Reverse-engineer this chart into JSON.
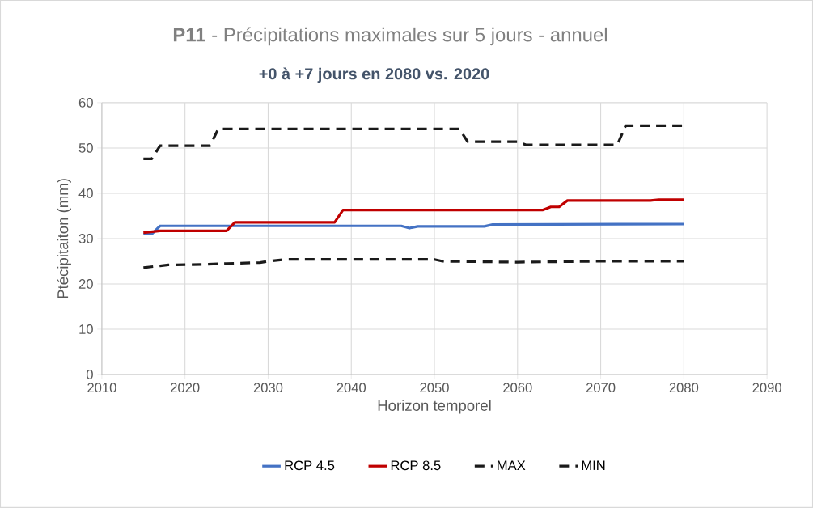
{
  "chart_data": {
    "type": "line",
    "title": "**P11** - Précipitations maximales sur 5 jours - annuel",
    "subtitle": "+0 à +7 jours en 2080 vs. 2020",
    "xlabel": "Horizon temporel",
    "ylabel": "Ptécipitaiton (mm)",
    "xlim": [
      2010,
      2090
    ],
    "xticks": [
      2010,
      2020,
      2030,
      2040,
      2050,
      2060,
      2070,
      2080,
      2090
    ],
    "ylim": [
      0,
      60
    ],
    "yticks": [
      0,
      10,
      20,
      30,
      40,
      50,
      60
    ],
    "grid": true,
    "legend": "bottom",
    "series": [
      {
        "name": "RCP 4.5",
        "color": "#4472c4",
        "line_style": "solid",
        "x": [
          2015,
          2016,
          2017,
          2046,
          2047,
          2048,
          2056,
          2057,
          2080
        ],
        "values": [
          31,
          31,
          32.8,
          32.8,
          32.3,
          32.7,
          32.7,
          33.1,
          33.2
        ]
      },
      {
        "name": "RCP 8.5",
        "color": "#c00000",
        "line_style": "solid",
        "x": [
          2015,
          2017,
          2025,
          2026,
          2038,
          2039,
          2063,
          2064,
          2065,
          2066,
          2076,
          2077,
          2080
        ],
        "values": [
          31.3,
          31.7,
          31.7,
          33.6,
          33.6,
          36.3,
          36.3,
          37,
          37,
          38.4,
          38.4,
          38.6,
          38.6
        ]
      },
      {
        "name": "MAX",
        "color": "#1a1a1a",
        "line_style": "dashed",
        "x": [
          2015,
          2016,
          2017,
          2023,
          2024,
          2053,
          2054,
          2060,
          2061,
          2072,
          2073,
          2080
        ],
        "values": [
          47.6,
          47.6,
          50.5,
          50.5,
          54.2,
          54.2,
          51.4,
          51.4,
          50.7,
          50.7,
          54.9,
          54.9
        ]
      },
      {
        "name": "MIN",
        "color": "#1a1a1a",
        "line_style": "dashed",
        "x": [
          2015,
          2017,
          2018,
          2022,
          2025,
          2029,
          2030,
          2032,
          2050,
          2051,
          2060,
          2070,
          2080
        ],
        "values": [
          23.6,
          24.0,
          24.2,
          24.3,
          24.5,
          24.7,
          25.0,
          25.4,
          25.4,
          25.0,
          24.8,
          25.0,
          25.0
        ]
      }
    ]
  }
}
